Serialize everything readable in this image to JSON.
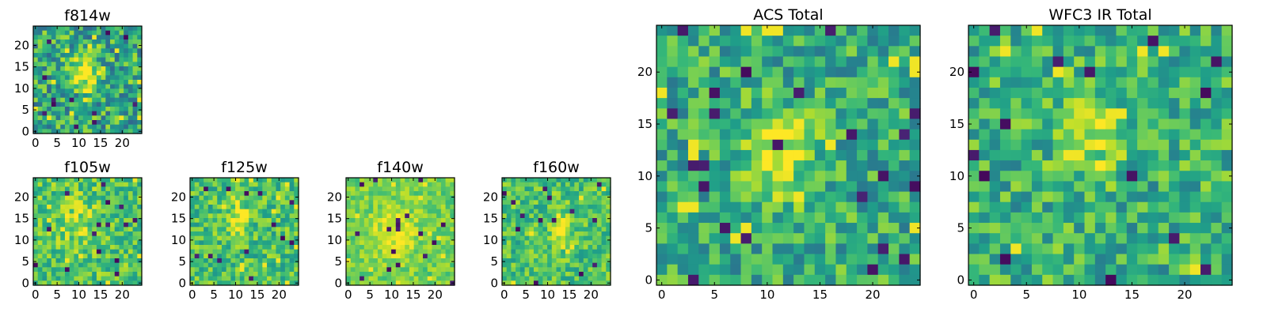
{
  "figure": {
    "background": "#ffffff",
    "axis_color": "#000000"
  },
  "chart_data": [
    {
      "type": "heatmap",
      "id": "f814w",
      "title": "f814w",
      "grid_size": 24,
      "xlim": [
        -0.5,
        24.5
      ],
      "ylim": [
        -0.5,
        24.5
      ],
      "xticks": [
        0,
        5,
        10,
        15,
        20
      ],
      "yticks": [
        0,
        5,
        10,
        15,
        20
      ],
      "colormap": "viridis",
      "seed": 11,
      "blob": {
        "cx": 11,
        "cy": 13,
        "sx": 2.2,
        "sy": 2.6,
        "amp": 0.45
      },
      "base": 0.6,
      "noise": 0.55
    },
    {
      "type": "heatmap",
      "id": "f105w",
      "title": "f105w",
      "grid_size": 24,
      "xlim": [
        -0.5,
        24.5
      ],
      "ylim": [
        -0.5,
        24.5
      ],
      "xticks": [
        0,
        5,
        10,
        15,
        20
      ],
      "yticks": [
        0,
        5,
        10,
        15,
        20
      ],
      "colormap": "viridis",
      "seed": 23,
      "blob": {
        "cx": 9,
        "cy": 14,
        "sx": 3,
        "sy": 4,
        "amp": 0.15
      },
      "base": 0.72,
      "noise": 0.38
    },
    {
      "type": "heatmap",
      "id": "f125w",
      "title": "f125w",
      "grid_size": 24,
      "xlim": [
        -0.5,
        24.5
      ],
      "ylim": [
        -0.5,
        24.5
      ],
      "xticks": [
        0,
        5,
        10,
        15,
        20
      ],
      "yticks": [
        0,
        5,
        10,
        15,
        20
      ],
      "colormap": "viridis",
      "seed": 37,
      "blob": {
        "cx": 10,
        "cy": 14,
        "sx": 1.8,
        "sy": 3.5,
        "amp": 0.25
      },
      "base": 0.7,
      "noise": 0.38
    },
    {
      "type": "heatmap",
      "id": "f140w",
      "title": "f140w",
      "grid_size": 24,
      "xlim": [
        -0.5,
        24.5
      ],
      "ylim": [
        -0.5,
        24.5
      ],
      "xticks": [
        0,
        5,
        10,
        15,
        20
      ],
      "yticks": [
        0,
        5,
        10,
        15,
        20
      ],
      "colormap": "viridis",
      "seed": 41,
      "blob": {
        "cx": 10,
        "cy": 11,
        "sx": 3.5,
        "sy": 4,
        "amp": 0.2
      },
      "base": 0.78,
      "noise": 0.24
    },
    {
      "type": "heatmap",
      "id": "f160w",
      "title": "f160w",
      "grid_size": 24,
      "xlim": [
        -0.5,
        24.5
      ],
      "ylim": [
        -0.5,
        24.5
      ],
      "xticks": [
        0,
        5,
        10,
        15,
        20
      ],
      "yticks": [
        0,
        5,
        10,
        15,
        20
      ],
      "colormap": "viridis",
      "seed": 53,
      "blob": {
        "cx": 12,
        "cy": 12,
        "sx": 1.6,
        "sy": 3.5,
        "amp": 0.28
      },
      "base": 0.7,
      "noise": 0.36
    },
    {
      "type": "heatmap",
      "id": "acs_total",
      "title": "ACS Total",
      "grid_size": 25,
      "xlim": [
        -0.5,
        24.5
      ],
      "ylim": [
        -0.5,
        24.5
      ],
      "xticks": [
        0,
        5,
        10,
        15,
        20
      ],
      "yticks": [
        0,
        5,
        10,
        15,
        20
      ],
      "colormap": "viridis",
      "seed": 67,
      "blob": {
        "cx": 11,
        "cy": 12,
        "sx": 2.2,
        "sy": 3,
        "amp": 0.38
      },
      "base": 0.62,
      "noise": 0.44
    },
    {
      "type": "heatmap",
      "id": "wfc3_ir_total",
      "title": "WFC3 IR Total",
      "grid_size": 25,
      "xlim": [
        -0.5,
        24.5
      ],
      "ylim": [
        -0.5,
        24.5
      ],
      "xticks": [
        0,
        5,
        10,
        15,
        20
      ],
      "yticks": [
        0,
        5,
        10,
        15,
        20
      ],
      "colormap": "viridis",
      "seed": 79,
      "blob": {
        "cx": 11,
        "cy": 14,
        "sx": 2,
        "sy": 3,
        "amp": 0.3
      },
      "base": 0.64,
      "noise": 0.44
    }
  ]
}
